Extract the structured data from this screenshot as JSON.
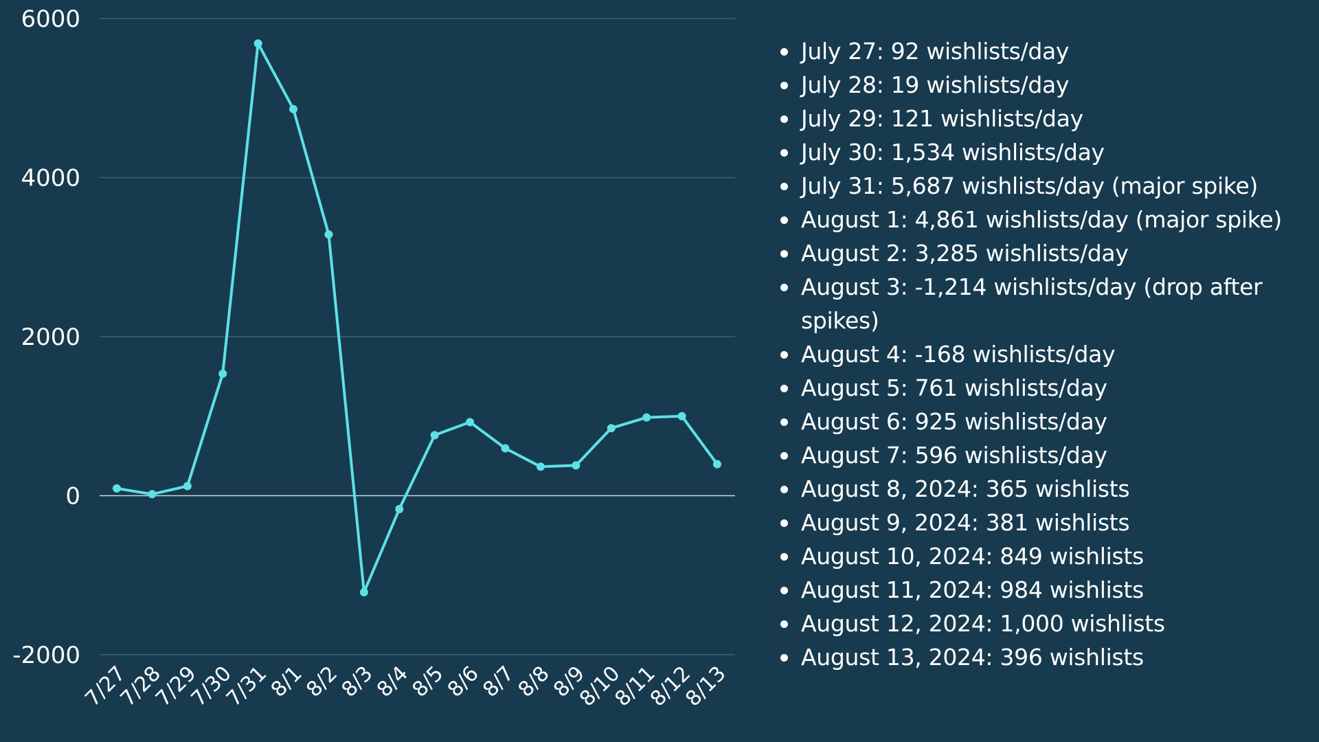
{
  "chart_data": {
    "type": "line",
    "title": "",
    "xlabel": "",
    "ylabel": "",
    "ylim": [
      -2000,
      6000
    ],
    "y_ticks": [
      6000,
      4000,
      2000,
      0,
      -2000
    ],
    "y_tick_labels": [
      "6000",
      "4000",
      "2000",
      "0",
      "-2000"
    ],
    "grid": true,
    "legend": "none",
    "line_color": "#5ee0e6",
    "categories": [
      "7/27",
      "7/28",
      "7/29",
      "7/30",
      "7/31",
      "8/1",
      "8/2",
      "8/3",
      "8/4",
      "8/5",
      "8/6",
      "8/7",
      "8/8",
      "8/9",
      "8/10",
      "8/11",
      "8/12",
      "8/13"
    ],
    "values": [
      92,
      19,
      121,
      1534,
      5687,
      4861,
      3285,
      -1214,
      -168,
      761,
      925,
      596,
      365,
      381,
      849,
      984,
      1000,
      396
    ]
  },
  "notes": [
    "July 27: 92 wishlists/day",
    "July 28: 19 wishlists/day",
    "July 29: 121 wishlists/day",
    "July 30: 1,534 wishlists/day",
    "July 31: 5,687 wishlists/day (major spike)",
    "August 1: 4,861 wishlists/day (major spike)",
    "August 2: 3,285 wishlists/day",
    "August 3: -1,214 wishlists/day (drop after spikes)",
    "August 4: -168 wishlists/day",
    "August 5: 761 wishlists/day",
    "August 6: 925 wishlists/day",
    "August 7: 596 wishlists/day",
    "August 8, 2024: 365 wishlists",
    "August 9, 2024: 381 wishlists",
    "August 10, 2024: 849 wishlists",
    "August 11, 2024: 984 wishlists",
    "August 12, 2024: 1,000 wishlists",
    "August 13, 2024: 396 wishlists"
  ],
  "colors": {
    "background": "#173a4e",
    "series": "#5ee0e6",
    "text": "#ffffff"
  }
}
